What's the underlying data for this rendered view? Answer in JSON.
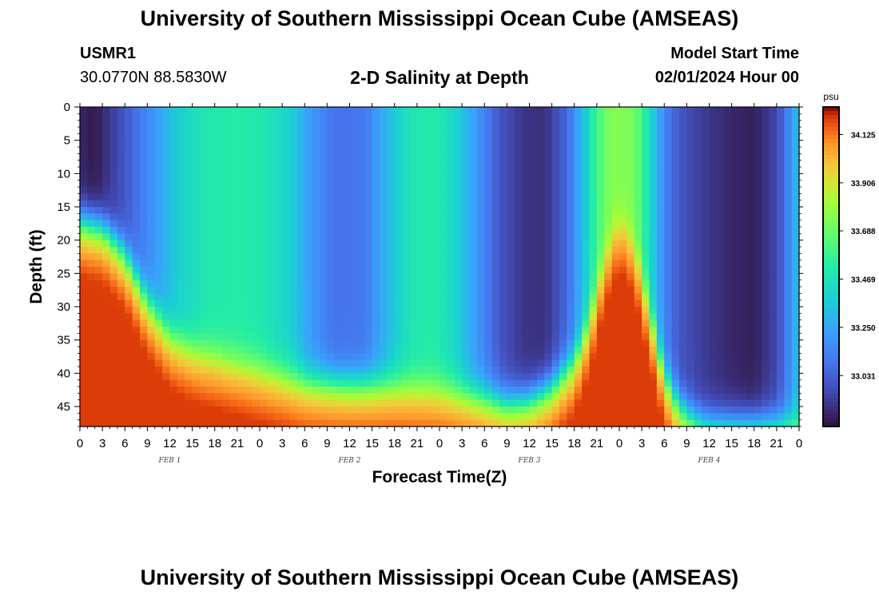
{
  "header": {
    "title": "University of Southern Mississippi Ocean Cube (AMSEAS)",
    "station_id": "USMR1",
    "station_location": "30.0770N  88.5830W",
    "plot_title": "2-D Salinity at Depth",
    "model_label": "Model Start Time",
    "model_time": "02/01/2024 Hour 00"
  },
  "footer": {
    "title": "University of Southern Mississippi Ocean Cube (AMSEAS)"
  },
  "chart_data": {
    "type": "heatmap",
    "title": "2-D Salinity at Depth",
    "xlabel": "Forecast Time(Z)",
    "ylabel": "Depth (ft)",
    "x_range_hours": [
      0,
      96
    ],
    "y_range_ft": [
      0,
      48
    ],
    "x_ticks": [
      {
        "hour": 0,
        "label": "0"
      },
      {
        "hour": 3,
        "label": "3"
      },
      {
        "hour": 6,
        "label": "6"
      },
      {
        "hour": 9,
        "label": "9"
      },
      {
        "hour": 12,
        "label": "12"
      },
      {
        "hour": 15,
        "label": "15"
      },
      {
        "hour": 18,
        "label": "18"
      },
      {
        "hour": 21,
        "label": "21"
      },
      {
        "hour": 24,
        "label": "0"
      },
      {
        "hour": 27,
        "label": "3"
      },
      {
        "hour": 30,
        "label": "6"
      },
      {
        "hour": 33,
        "label": "9"
      },
      {
        "hour": 36,
        "label": "12"
      },
      {
        "hour": 39,
        "label": "15"
      },
      {
        "hour": 42,
        "label": "18"
      },
      {
        "hour": 45,
        "label": "21"
      },
      {
        "hour": 48,
        "label": "0"
      },
      {
        "hour": 51,
        "label": "3"
      },
      {
        "hour": 54,
        "label": "6"
      },
      {
        "hour": 57,
        "label": "9"
      },
      {
        "hour": 60,
        "label": "12"
      },
      {
        "hour": 63,
        "label": "15"
      },
      {
        "hour": 66,
        "label": "18"
      },
      {
        "hour": 69,
        "label": "21"
      },
      {
        "hour": 72,
        "label": "0"
      },
      {
        "hour": 75,
        "label": "3"
      },
      {
        "hour": 78,
        "label": "6"
      },
      {
        "hour": 81,
        "label": "9"
      },
      {
        "hour": 84,
        "label": "12"
      },
      {
        "hour": 87,
        "label": "15"
      },
      {
        "hour": 90,
        "label": "18"
      },
      {
        "hour": 93,
        "label": "21"
      },
      {
        "hour": 96,
        "label": "0"
      }
    ],
    "day_labels": [
      {
        "hour": 12,
        "label": "FEB 1"
      },
      {
        "hour": 36,
        "label": "FEB 2"
      },
      {
        "hour": 60,
        "label": "FEB 3"
      },
      {
        "hour": 84,
        "label": "FEB 4"
      }
    ],
    "y_ticks": [
      0,
      5,
      10,
      15,
      20,
      25,
      30,
      35,
      40,
      45
    ],
    "surface_salinity_profile": [
      {
        "hour": 0,
        "value": 32.86
      },
      {
        "hour": 2,
        "value": 32.82
      },
      {
        "hour": 6,
        "value": 33.0
      },
      {
        "hour": 10,
        "value": 33.2
      },
      {
        "hour": 13,
        "value": 33.38
      },
      {
        "hour": 17,
        "value": 33.5
      },
      {
        "hour": 21,
        "value": 33.52
      },
      {
        "hour": 24,
        "value": 33.5
      },
      {
        "hour": 28,
        "value": 33.4
      },
      {
        "hour": 31,
        "value": 33.2
      },
      {
        "hour": 34,
        "value": 33.08
      },
      {
        "hour": 38,
        "value": 33.1
      },
      {
        "hour": 41,
        "value": 33.3
      },
      {
        "hour": 44,
        "value": 33.48
      },
      {
        "hour": 47,
        "value": 33.52
      },
      {
        "hour": 50,
        "value": 33.42
      },
      {
        "hour": 53,
        "value": 33.2
      },
      {
        "hour": 56,
        "value": 33.0
      },
      {
        "hour": 59,
        "value": 32.9
      },
      {
        "hour": 62,
        "value": 32.88
      },
      {
        "hour": 65,
        "value": 33.05
      },
      {
        "hour": 67,
        "value": 33.3
      },
      {
        "hour": 69,
        "value": 33.6
      },
      {
        "hour": 71,
        "value": 33.75
      },
      {
        "hour": 74,
        "value": 33.72
      },
      {
        "hour": 76,
        "value": 33.45
      },
      {
        "hour": 78,
        "value": 33.15
      },
      {
        "hour": 80,
        "value": 33.0
      },
      {
        "hour": 83,
        "value": 32.92
      },
      {
        "hour": 87,
        "value": 32.86
      },
      {
        "hour": 90,
        "value": 32.84
      },
      {
        "hour": 93,
        "value": 32.95
      },
      {
        "hour": 95,
        "value": 33.2
      },
      {
        "hour": 96,
        "value": 33.35
      }
    ],
    "deep_layer_top_ft": [
      {
        "hour": 0,
        "value": 17
      },
      {
        "hour": 3,
        "value": 18
      },
      {
        "hour": 6,
        "value": 22
      },
      {
        "hour": 9,
        "value": 29
      },
      {
        "hour": 12,
        "value": 34
      },
      {
        "hour": 15,
        "value": 36
      },
      {
        "hour": 18,
        "value": 37
      },
      {
        "hour": 21,
        "value": 38
      },
      {
        "hour": 24,
        "value": 39
      },
      {
        "hour": 27,
        "value": 40
      },
      {
        "hour": 30,
        "value": 41
      },
      {
        "hour": 36,
        "value": 41.5
      },
      {
        "hour": 42,
        "value": 41.5
      },
      {
        "hour": 48,
        "value": 42
      },
      {
        "hour": 54,
        "value": 43.5
      },
      {
        "hour": 57,
        "value": 44.5
      },
      {
        "hour": 60,
        "value": 44
      },
      {
        "hour": 63,
        "value": 42
      },
      {
        "hour": 66,
        "value": 38
      },
      {
        "hour": 68,
        "value": 32
      },
      {
        "hour": 70,
        "value": 22
      },
      {
        "hour": 72,
        "value": 16
      },
      {
        "hour": 74,
        "value": 20
      },
      {
        "hour": 76,
        "value": 30
      },
      {
        "hour": 78,
        "value": 40
      },
      {
        "hour": 80,
        "value": 45
      },
      {
        "hour": 82,
        "value": 47
      },
      {
        "hour": 84,
        "value": 48
      },
      {
        "hour": 96,
        "value": 48
      }
    ],
    "colorbar": {
      "unit": "psu",
      "min": 32.8,
      "max": 34.25,
      "tick_values": [
        34.125,
        33.906,
        33.688,
        33.469,
        33.25,
        33.031
      ],
      "tick_labels": [
        "34.125",
        "33.906",
        "33.688",
        "33.469",
        "33.250",
        "33.031"
      ]
    }
  }
}
